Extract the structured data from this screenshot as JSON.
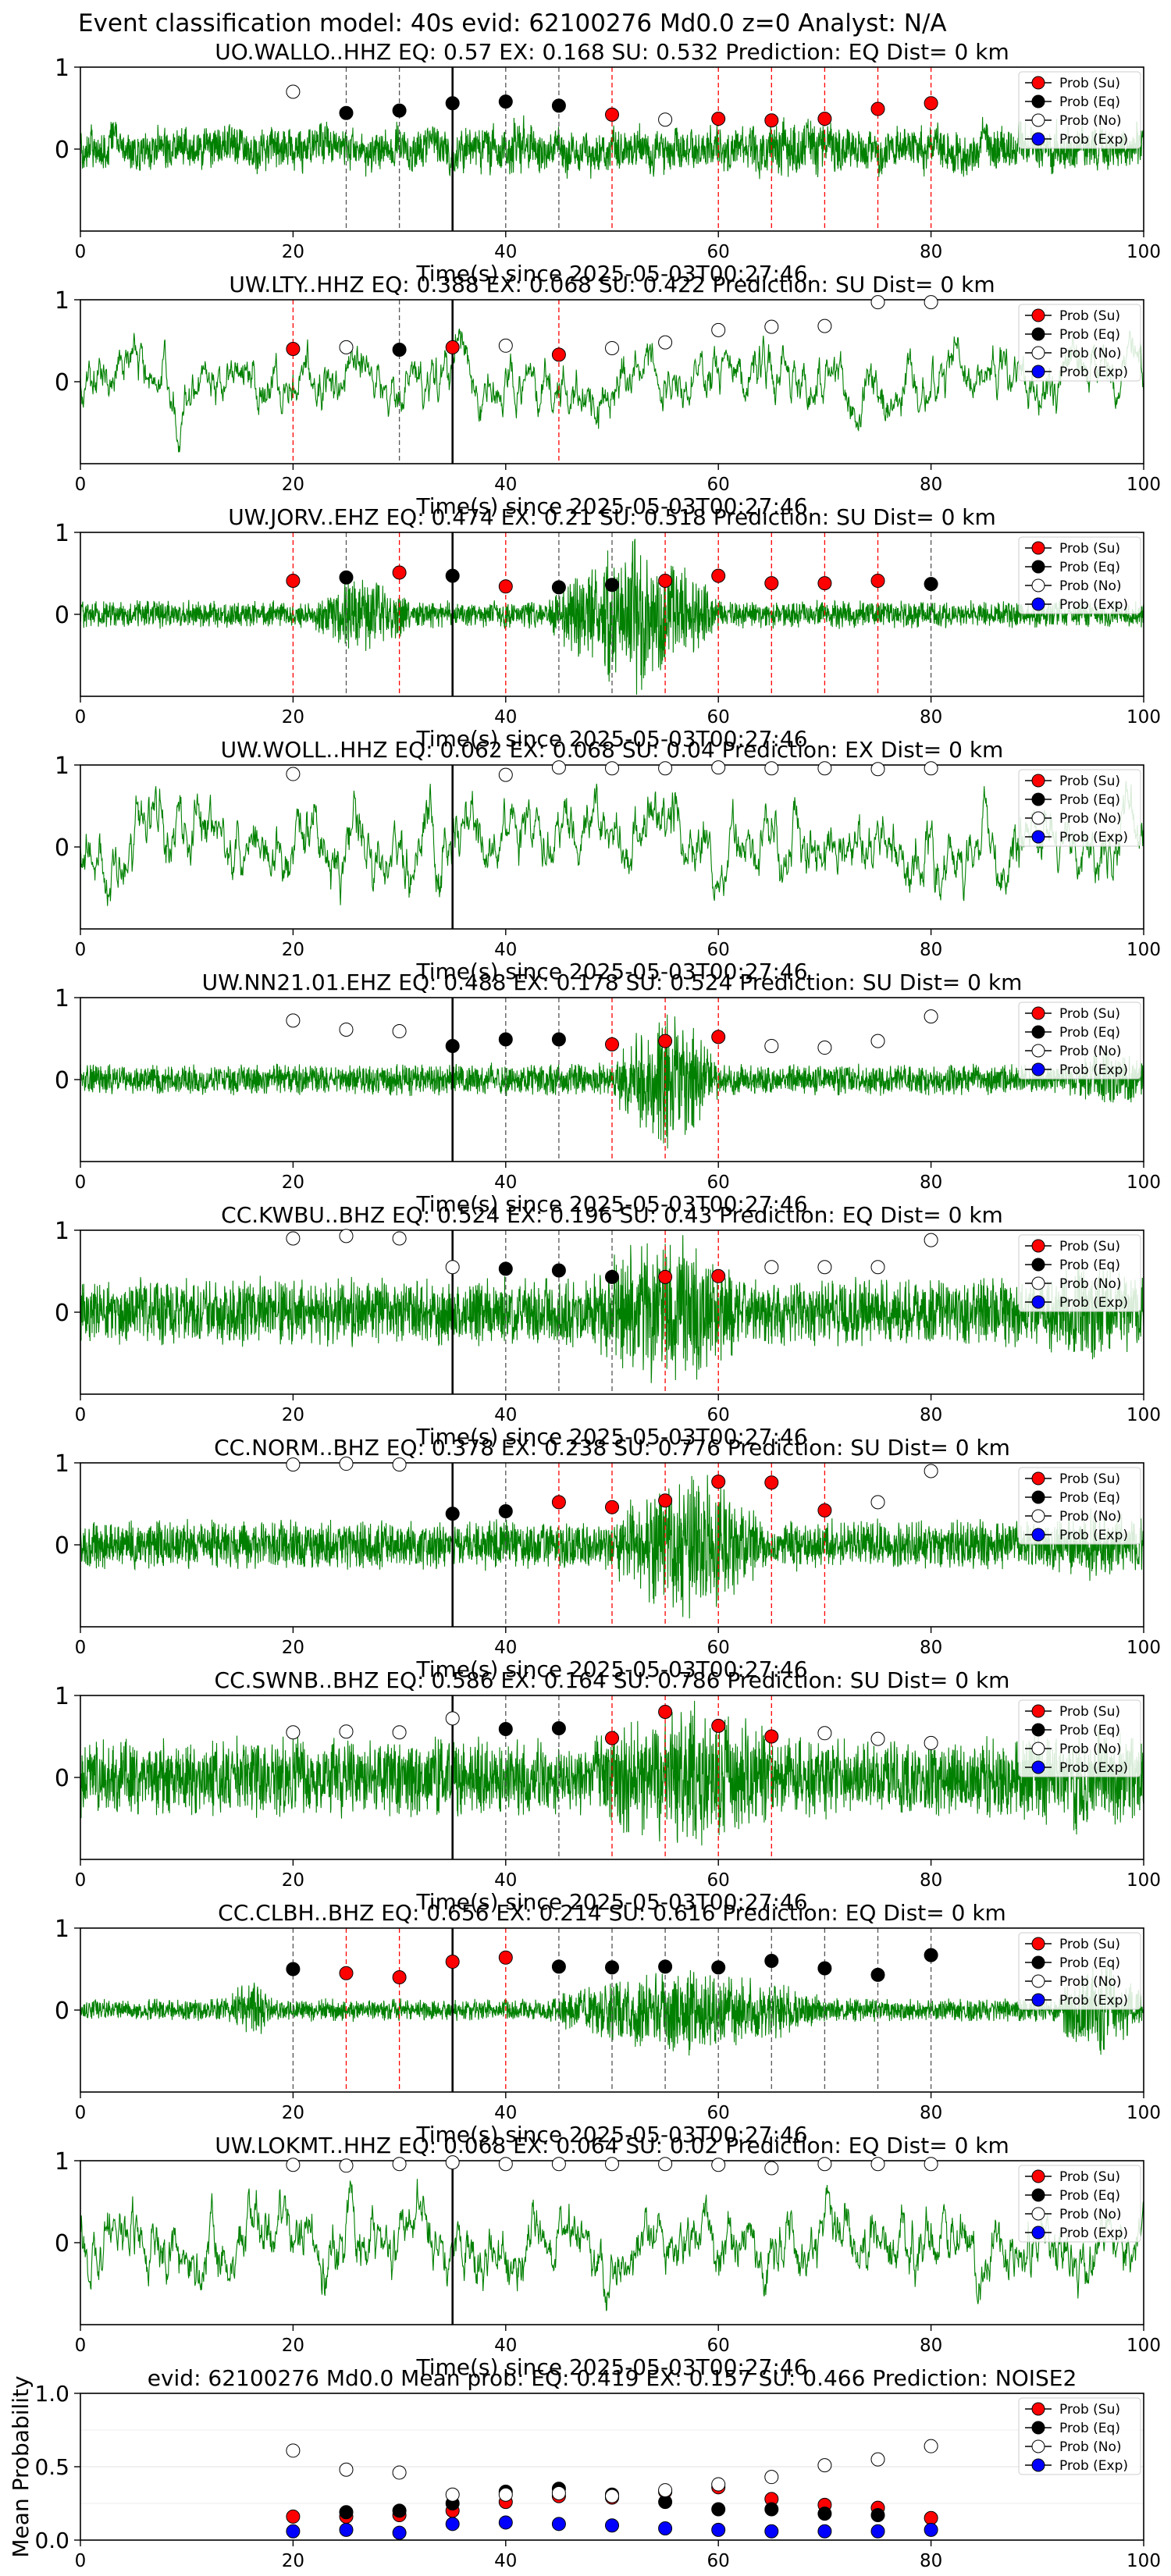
{
  "figure": {
    "suptitle": "Event classification model: 40s evid: 62100276 Md0.0 z=0 Analyst: N/A"
  },
  "legend_labels": [
    "Prob (Su)",
    "Prob (Eq)",
    "Prob (No)",
    "Prob (Exp)"
  ],
  "colors": {
    "waveform": "#008000",
    "su": "#ff0000",
    "eq": "#000000",
    "no": "#ffffff",
    "exp": "#0000ff",
    "su_line": "#ff0000",
    "eq_line": "#555555",
    "pick_line": "#000000"
  },
  "chart_data": [
    {
      "type": "scatter",
      "title": "UO.WALLO..HHZ   EQ: 0.57   EX: 0.168   SU: 0.532   Prediction: EQ    Dist= 0 km",
      "xlabel": "Time(s) since 2025-05-03T00:27:46",
      "xlim": [
        0,
        100
      ],
      "ylim": [
        -1,
        1
      ],
      "x_ticks": [
        "0",
        "20",
        "40",
        "60",
        "80",
        "100"
      ],
      "y_ticks": [
        "1",
        "0"
      ],
      "pick_time": 35,
      "waveform": {
        "amplitude": 0.33,
        "style": "mixed",
        "bursts": [
          [
            40,
            42,
            1.6
          ],
          [
            62,
            72,
            1.4
          ]
        ]
      },
      "series": [
        {
          "name": "Prob (Su)",
          "x": [
            50,
            60,
            65,
            70,
            75,
            80
          ],
          "y": [
            0.42,
            0.37,
            0.35,
            0.37,
            0.49,
            0.56
          ]
        },
        {
          "name": "Prob (Eq)",
          "x": [
            25,
            30,
            35,
            40,
            45
          ],
          "y": [
            0.44,
            0.47,
            0.56,
            0.58,
            0.53
          ]
        },
        {
          "name": "Prob (No)",
          "x": [
            20,
            55
          ],
          "y": [
            0.7,
            0.36
          ]
        },
        {
          "name": "Prob (Exp)",
          "x": [],
          "y": []
        }
      ]
    },
    {
      "type": "scatter",
      "title": "UW.LTY..HHZ   EQ: 0.388   EX: 0.068   SU: 0.422   Prediction: SU    Dist= 0 km",
      "xlabel": "Time(s) since 2025-05-03T00:27:46",
      "xlim": [
        0,
        100
      ],
      "ylim": [
        -1,
        1
      ],
      "x_ticks": [
        "0",
        "20",
        "40",
        "60",
        "80",
        "100"
      ],
      "y_ticks": [
        "1",
        "0"
      ],
      "pick_time": 35,
      "waveform": {
        "amplitude": 0.5,
        "style": "lowfreq",
        "bursts": []
      },
      "series": [
        {
          "name": "Prob (Su)",
          "x": [
            20,
            35,
            45
          ],
          "y": [
            0.4,
            0.42,
            0.33
          ]
        },
        {
          "name": "Prob (Eq)",
          "x": [
            30
          ],
          "y": [
            0.39
          ]
        },
        {
          "name": "Prob (No)",
          "x": [
            25,
            40,
            50,
            55,
            60,
            65,
            70,
            75,
            80
          ],
          "y": [
            0.42,
            0.44,
            0.41,
            0.48,
            0.63,
            0.67,
            0.68,
            0.97,
            0.97
          ]
        },
        {
          "name": "Prob (Exp)",
          "x": [],
          "y": []
        }
      ]
    },
    {
      "type": "scatter",
      "title": "UW.JORV..EHZ   EQ: 0.474   EX: 0.21   SU: 0.518   Prediction: SU    Dist= 0 km",
      "xlabel": "Time(s) since 2025-05-03T00:27:46",
      "xlim": [
        0,
        100
      ],
      "ylim": [
        -1,
        1
      ],
      "x_ticks": [
        "0",
        "20",
        "40",
        "60",
        "80",
        "100"
      ],
      "y_ticks": [
        "1",
        "0"
      ],
      "pick_time": 35,
      "waveform": {
        "amplitude": 0.12,
        "style": "highfreq",
        "bursts": [
          [
            22,
            31,
            3.0
          ],
          [
            44,
            60,
            6.0
          ]
        ]
      },
      "series": [
        {
          "name": "Prob (Su)",
          "x": [
            20,
            30,
            40,
            55,
            60,
            65,
            70,
            75
          ],
          "y": [
            0.41,
            0.51,
            0.34,
            0.41,
            0.47,
            0.38,
            0.38,
            0.41
          ]
        },
        {
          "name": "Prob (Eq)",
          "x": [
            25,
            35,
            45,
            50,
            80
          ],
          "y": [
            0.45,
            0.47,
            0.33,
            0.36,
            0.37
          ]
        },
        {
          "name": "Prob (No)",
          "x": [],
          "y": []
        },
        {
          "name": "Prob (Exp)",
          "x": [],
          "y": []
        }
      ]
    },
    {
      "type": "scatter",
      "title": "UW.WOLL..HHZ   EQ: 0.062   EX: 0.068   SU: 0.04   Prediction: EX    Dist= 0 km",
      "xlabel": "Time(s) since 2025-05-03T00:27:46",
      "xlim": [
        0,
        100
      ],
      "ylim": [
        -1,
        1
      ],
      "x_ticks": [
        "0",
        "20",
        "40",
        "60",
        "80",
        "100"
      ],
      "y_ticks": [
        "1",
        "0"
      ],
      "pick_time": 35,
      "waveform": {
        "amplitude": 0.6,
        "style": "lowfreq",
        "bursts": []
      },
      "series": [
        {
          "name": "Prob (Su)",
          "x": [],
          "y": []
        },
        {
          "name": "Prob (Eq)",
          "x": [],
          "y": []
        },
        {
          "name": "Prob (No)",
          "x": [
            20,
            40,
            45,
            50,
            55,
            60,
            65,
            70,
            75,
            80
          ],
          "y": [
            0.89,
            0.88,
            0.97,
            0.96,
            0.96,
            0.97,
            0.96,
            0.96,
            0.95,
            0.96
          ]
        },
        {
          "name": "Prob (Exp)",
          "x": [],
          "y": []
        }
      ]
    },
    {
      "type": "scatter",
      "title": "UW.NN21.01.EHZ   EQ: 0.488   EX: 0.178   SU: 0.524   Prediction: SU    Dist= 0 km",
      "xlabel": "Time(s) since 2025-05-03T00:27:46",
      "xlim": [
        0,
        100
      ],
      "ylim": [
        -1,
        1
      ],
      "x_ticks": [
        "0",
        "20",
        "40",
        "60",
        "80",
        "100"
      ],
      "y_ticks": [
        "1",
        "0"
      ],
      "pick_time": 35,
      "waveform": {
        "amplitude": 0.14,
        "style": "highfreq",
        "bursts": [
          [
            50,
            60,
            4.5
          ],
          [
            93,
            100,
            2.0
          ]
        ]
      },
      "series": [
        {
          "name": "Prob (Su)",
          "x": [
            50,
            55,
            60
          ],
          "y": [
            0.43,
            0.47,
            0.52
          ]
        },
        {
          "name": "Prob (Eq)",
          "x": [
            35,
            40,
            45
          ],
          "y": [
            0.41,
            0.49,
            0.49
          ]
        },
        {
          "name": "Prob (No)",
          "x": [
            20,
            25,
            30,
            65,
            70,
            75,
            80
          ],
          "y": [
            0.72,
            0.61,
            0.59,
            0.41,
            0.39,
            0.47,
            0.77
          ]
        },
        {
          "name": "Prob (Exp)",
          "x": [],
          "y": []
        }
      ]
    },
    {
      "type": "scatter",
      "title": "CC.KWBU..BHZ   EQ: 0.524   EX: 0.196   SU: 0.43   Prediction: EQ    Dist= 0 km",
      "xlabel": "Time(s) since 2025-05-03T00:27:46",
      "xlim": [
        0,
        100
      ],
      "ylim": [
        -1,
        1
      ],
      "x_ticks": [
        "0",
        "20",
        "40",
        "60",
        "80",
        "100"
      ],
      "y_ticks": [
        "1",
        "0"
      ],
      "pick_time": 35,
      "waveform": {
        "amplitude": 0.3,
        "style": "highfreq",
        "bursts": [
          [
            48,
            62,
            2.4
          ],
          [
            90,
            100,
            1.5
          ]
        ]
      },
      "series": [
        {
          "name": "Prob (Su)",
          "x": [
            55,
            60
          ],
          "y": [
            0.43,
            0.44
          ]
        },
        {
          "name": "Prob (Eq)",
          "x": [
            40,
            45,
            50
          ],
          "y": [
            0.53,
            0.51,
            0.43
          ]
        },
        {
          "name": "Prob (No)",
          "x": [
            20,
            25,
            30,
            35,
            65,
            70,
            75,
            80
          ],
          "y": [
            0.9,
            0.93,
            0.9,
            0.55,
            0.55,
            0.55,
            0.55,
            0.88
          ]
        },
        {
          "name": "Prob (Exp)",
          "x": [],
          "y": []
        }
      ]
    },
    {
      "type": "scatter",
      "title": "CC.NORM..BHZ   EQ: 0.378   EX: 0.238   SU: 0.776   Prediction: SU    Dist= 0 km",
      "xlabel": "Time(s) since 2025-05-03T00:27:46",
      "xlim": [
        0,
        100
      ],
      "ylim": [
        -1,
        1
      ],
      "x_ticks": [
        "0",
        "20",
        "40",
        "60",
        "80",
        "100"
      ],
      "y_ticks": [
        "1",
        "0"
      ],
      "pick_time": 35,
      "waveform": {
        "amplitude": 0.22,
        "style": "highfreq",
        "bursts": [
          [
            50,
            64,
            3.2
          ],
          [
            90,
            100,
            1.4
          ]
        ]
      },
      "series": [
        {
          "name": "Prob (Su)",
          "x": [
            45,
            50,
            55,
            60,
            65,
            70
          ],
          "y": [
            0.52,
            0.46,
            0.54,
            0.77,
            0.76,
            0.42
          ]
        },
        {
          "name": "Prob (Eq)",
          "x": [
            35,
            40
          ],
          "y": [
            0.38,
            0.41
          ]
        },
        {
          "name": "Prob (No)",
          "x": [
            20,
            25,
            30,
            75,
            80
          ],
          "y": [
            0.98,
            0.99,
            0.98,
            0.52,
            0.9
          ]
        },
        {
          "name": "Prob (Exp)",
          "x": [],
          "y": []
        }
      ]
    },
    {
      "type": "scatter",
      "title": "CC.SWNB..BHZ   EQ: 0.586   EX: 0.164   SU: 0.786   Prediction: SU    Dist= 0 km",
      "xlabel": "Time(s) since 2025-05-03T00:27:46",
      "xlim": [
        0,
        100
      ],
      "ylim": [
        -1,
        1
      ],
      "x_ticks": [
        "0",
        "20",
        "40",
        "60",
        "80",
        "100"
      ],
      "y_ticks": [
        "1",
        "0"
      ],
      "pick_time": 35,
      "waveform": {
        "amplitude": 0.35,
        "style": "highfreq",
        "bursts": [
          [
            48,
            66,
            1.9
          ],
          [
            88,
            100,
            1.4
          ]
        ]
      },
      "series": [
        {
          "name": "Prob (Su)",
          "x": [
            50,
            55,
            60,
            65
          ],
          "y": [
            0.48,
            0.8,
            0.63,
            0.5
          ]
        },
        {
          "name": "Prob (Eq)",
          "x": [
            40,
            45
          ],
          "y": [
            0.59,
            0.6
          ]
        },
        {
          "name": "Prob (No)",
          "x": [
            20,
            25,
            30,
            35,
            70,
            75,
            80
          ],
          "y": [
            0.55,
            0.56,
            0.55,
            0.72,
            0.54,
            0.47,
            0.42
          ]
        },
        {
          "name": "Prob (Exp)",
          "x": [],
          "y": []
        }
      ]
    },
    {
      "type": "scatter",
      "title": "CC.CLBH..BHZ   EQ: 0.656   EX: 0.214   SU: 0.616   Prediction: EQ    Dist= 0 km",
      "xlabel": "Time(s) since 2025-05-03T00:27:46",
      "xlim": [
        0,
        100
      ],
      "ylim": [
        -1,
        1
      ],
      "x_ticks": [
        "0",
        "20",
        "40",
        "60",
        "80",
        "100"
      ],
      "y_ticks": [
        "1",
        "0"
      ],
      "pick_time": 35,
      "waveform": {
        "amplitude": 0.1,
        "style": "highfreq",
        "bursts": [
          [
            14,
            18,
            3.0
          ],
          [
            44,
            70,
            4.0
          ],
          [
            92,
            100,
            5.0
          ]
        ]
      },
      "series": [
        {
          "name": "Prob (Su)",
          "x": [
            25,
            30,
            35,
            40
          ],
          "y": [
            0.45,
            0.4,
            0.59,
            0.64
          ]
        },
        {
          "name": "Prob (Eq)",
          "x": [
            20,
            45,
            50,
            55,
            60,
            65,
            70,
            75,
            80
          ],
          "y": [
            0.5,
            0.53,
            0.52,
            0.53,
            0.52,
            0.6,
            0.51,
            0.43,
            0.67
          ]
        },
        {
          "name": "Prob (No)",
          "x": [],
          "y": []
        },
        {
          "name": "Prob (Exp)",
          "x": [],
          "y": []
        }
      ]
    },
    {
      "type": "scatter",
      "title": "UW.LOKMT..HHZ   EQ: 0.068   EX: 0.064   SU: 0.02   Prediction: EQ    Dist= 0 km",
      "xlabel": "Time(s) since 2025-05-03T00:27:46",
      "xlim": [
        0,
        100
      ],
      "ylim": [
        -1,
        1
      ],
      "x_ticks": [
        "0",
        "20",
        "40",
        "60",
        "80",
        "100"
      ],
      "y_ticks": [
        "1",
        "0"
      ],
      "pick_time": 35,
      "waveform": {
        "amplitude": 0.6,
        "style": "lowfreq",
        "bursts": []
      },
      "series": [
        {
          "name": "Prob (Su)",
          "x": [],
          "y": []
        },
        {
          "name": "Prob (Eq)",
          "x": [],
          "y": []
        },
        {
          "name": "Prob (No)",
          "x": [
            20,
            25,
            30,
            35,
            40,
            45,
            50,
            55,
            60,
            65,
            70,
            75,
            80
          ],
          "y": [
            0.95,
            0.94,
            0.96,
            0.98,
            0.96,
            0.96,
            0.96,
            0.96,
            0.95,
            0.91,
            0.96,
            0.96,
            0.96
          ]
        },
        {
          "name": "Prob (Exp)",
          "x": [],
          "y": []
        }
      ]
    },
    {
      "type": "scatter",
      "title": "evid: 62100276  Md0.0   Mean prob:   EQ: 0.419   EX: 0.157   SU: 0.466   Prediction: NOISE2",
      "xlabel": "",
      "ylabel": "Mean Probability",
      "xlim": [
        0,
        100
      ],
      "ylim": [
        0,
        1
      ],
      "x_ticks": [
        "0",
        "20",
        "40",
        "60",
        "80",
        "100"
      ],
      "y_ticks": [
        "1.0",
        "0.5",
        "0.0"
      ],
      "y_tick_values": [
        1.0,
        0.5,
        0.0
      ],
      "grid": true,
      "series": [
        {
          "name": "Prob (Su)",
          "x": [
            20,
            25,
            30,
            35,
            40,
            45,
            50,
            55,
            60,
            65,
            70,
            75,
            80
          ],
          "y": [
            0.16,
            0.16,
            0.17,
            0.2,
            0.26,
            0.3,
            0.29,
            0.33,
            0.36,
            0.28,
            0.24,
            0.22,
            0.15
          ]
        },
        {
          "name": "Prob (Eq)",
          "x": [
            25,
            30,
            35,
            40,
            45,
            50,
            55,
            60,
            65,
            70,
            75
          ],
          "y": [
            0.19,
            0.2,
            0.25,
            0.33,
            0.35,
            0.31,
            0.26,
            0.21,
            0.21,
            0.18,
            0.17
          ]
        },
        {
          "name": "Prob (No)",
          "x": [
            20,
            25,
            30,
            35,
            40,
            45,
            50,
            55,
            60,
            65,
            70,
            75,
            80
          ],
          "y": [
            0.61,
            0.48,
            0.46,
            0.31,
            0.31,
            0.32,
            0.3,
            0.34,
            0.38,
            0.43,
            0.51,
            0.55,
            0.64
          ]
        },
        {
          "name": "Prob (Exp)",
          "x": [
            20,
            25,
            30,
            35,
            40,
            45,
            50,
            55,
            60,
            65,
            70,
            75,
            80
          ],
          "y": [
            0.06,
            0.07,
            0.05,
            0.11,
            0.12,
            0.11,
            0.1,
            0.08,
            0.07,
            0.06,
            0.06,
            0.06,
            0.07
          ]
        }
      ]
    }
  ]
}
